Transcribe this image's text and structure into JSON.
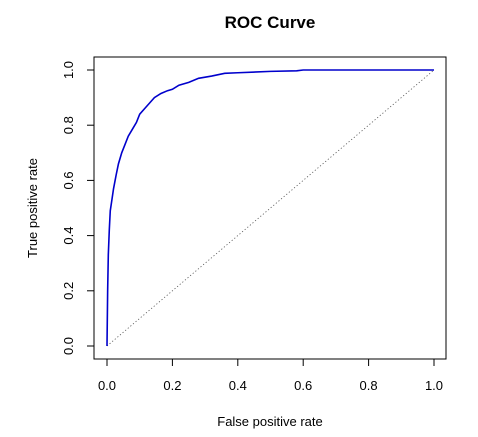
{
  "chart_data": {
    "type": "line",
    "title": "ROC Curve",
    "xlabel": "False positive rate",
    "ylabel": "True positive rate",
    "xlim": [
      0,
      1
    ],
    "ylim": [
      0,
      1
    ],
    "x_ticks": [
      "0.0",
      "0.2",
      "0.4",
      "0.6",
      "0.8",
      "1.0"
    ],
    "y_ticks": [
      "0.0",
      "0.2",
      "0.4",
      "0.6",
      "0.8",
      "1.0"
    ],
    "grid": false,
    "legend": "none",
    "reference_line": {
      "style": "dotted",
      "color": "#555555",
      "points": [
        [
          0,
          0
        ],
        [
          1,
          1
        ]
      ]
    },
    "series": [
      {
        "color": "#0000cc",
        "points": [
          [
            0.0,
            0.0
          ],
          [
            0.002,
            0.2
          ],
          [
            0.004,
            0.33
          ],
          [
            0.007,
            0.42
          ],
          [
            0.01,
            0.49
          ],
          [
            0.015,
            0.53
          ],
          [
            0.02,
            0.57
          ],
          [
            0.028,
            0.62
          ],
          [
            0.035,
            0.66
          ],
          [
            0.045,
            0.7
          ],
          [
            0.055,
            0.73
          ],
          [
            0.065,
            0.76
          ],
          [
            0.08,
            0.79
          ],
          [
            0.09,
            0.81
          ],
          [
            0.1,
            0.84
          ],
          [
            0.115,
            0.86
          ],
          [
            0.13,
            0.88
          ],
          [
            0.145,
            0.9
          ],
          [
            0.165,
            0.915
          ],
          [
            0.185,
            0.925
          ],
          [
            0.2,
            0.93
          ],
          [
            0.22,
            0.945
          ],
          [
            0.25,
            0.955
          ],
          [
            0.28,
            0.97
          ],
          [
            0.32,
            0.978
          ],
          [
            0.36,
            0.988
          ],
          [
            0.4,
            0.99
          ],
          [
            0.5,
            0.995
          ],
          [
            0.58,
            0.997
          ],
          [
            0.6,
            1.0
          ],
          [
            1.0,
            1.0
          ]
        ]
      }
    ]
  }
}
